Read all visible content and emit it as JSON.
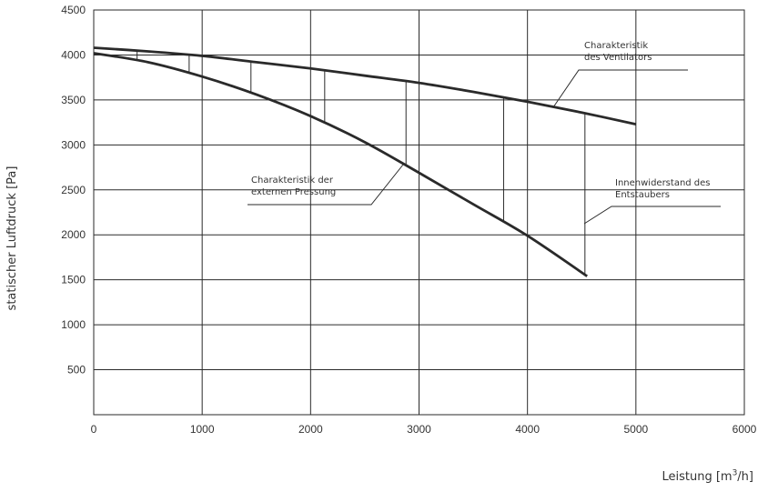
{
  "chart_data": {
    "type": "line",
    "title": "",
    "xlabel": "Leistung [m³/h]",
    "ylabel": "statischer Luftdruck [Pa]",
    "xlim": [
      0,
      6000
    ],
    "ylim": [
      0,
      4500
    ],
    "xticks": [
      0,
      1000,
      2000,
      3000,
      4000,
      5000,
      6000
    ],
    "yticks": [
      500,
      1000,
      1500,
      2000,
      2500,
      3000,
      3500,
      4000,
      4500
    ],
    "xtick_labels": [
      "0",
      "1000",
      "2000",
      "3000",
      "4000",
      "5000",
      "6000"
    ],
    "ytick_labels": [
      "500",
      "1000",
      "1500",
      "2000",
      "2500",
      "3000",
      "3500",
      "4000",
      "4500"
    ],
    "grid": true,
    "series": [
      {
        "name": "Charakteristik des Ventilators",
        "x": [
          0,
          500,
          1000,
          1500,
          2000,
          2500,
          3000,
          3500,
          4000,
          4500,
          5000
        ],
        "y": [
          4080,
          4040,
          3990,
          3920,
          3850,
          3770,
          3690,
          3590,
          3480,
          3360,
          3230
        ]
      },
      {
        "name": "Charakteristik der externen Pressung",
        "x": [
          0,
          500,
          1000,
          1500,
          2000,
          2500,
          3000,
          3500,
          4000,
          4550
        ],
        "y": [
          4020,
          3920,
          3760,
          3560,
          3320,
          3030,
          2690,
          2340,
          1990,
          1540
        ]
      }
    ],
    "resistance_drops_x": [
      400,
      880,
      1450,
      2130,
      2880,
      3780,
      4530
    ],
    "annotations": [
      {
        "lines": [
          "Charakteristik",
          "des Ventilators"
        ]
      },
      {
        "lines": [
          "Charakteristik der",
          "externen Pressung"
        ]
      },
      {
        "lines": [
          "Innenwiderstand  des",
          "Entstaubers"
        ]
      }
    ],
    "colors": {
      "curve": "#2a2a2a",
      "grid": "#2a2a2a",
      "text": "#333333"
    }
  }
}
